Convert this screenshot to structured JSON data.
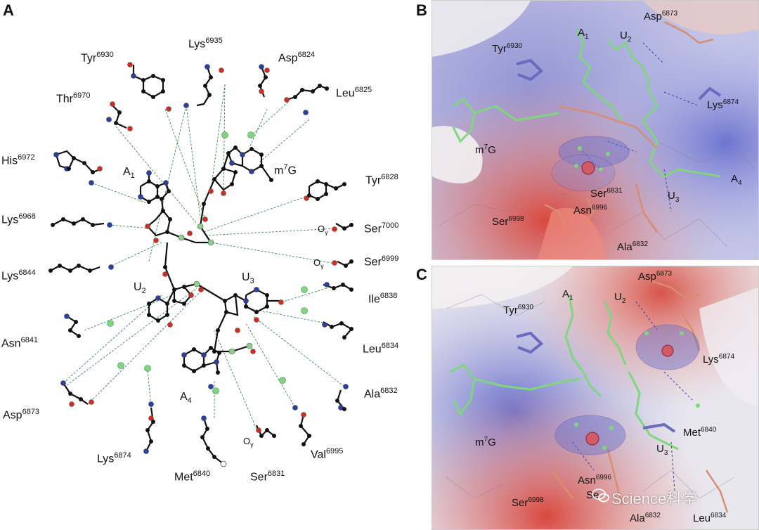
{
  "panels": {
    "a": "A",
    "b": "B",
    "c": "C"
  },
  "panel_a": {
    "residues": [
      {
        "key": "tyr6930",
        "name": "Tyr",
        "num": "6930"
      },
      {
        "key": "lys6935",
        "name": "Lys",
        "num": "6935"
      },
      {
        "key": "asp6824",
        "name": "Asp",
        "num": "6824"
      },
      {
        "key": "thr6970",
        "name": "Thr",
        "num": "6970"
      },
      {
        "key": "leu6825",
        "name": "Leu",
        "num": "6825"
      },
      {
        "key": "his6972",
        "name": "His",
        "num": "6972"
      },
      {
        "key": "tyr6828",
        "name": "Tyr",
        "num": "6828"
      },
      {
        "key": "lys6968",
        "name": "Lys",
        "num": "6968"
      },
      {
        "key": "ser7000",
        "name": "Ser",
        "num": "7000"
      },
      {
        "key": "ser6999",
        "name": "Ser",
        "num": "6999"
      },
      {
        "key": "lys6844",
        "name": "Lys",
        "num": "6844"
      },
      {
        "key": "ile6838",
        "name": "Ile",
        "num": "6838"
      },
      {
        "key": "asn6841",
        "name": "Asn",
        "num": "6841"
      },
      {
        "key": "leu6834",
        "name": "Leu",
        "num": "6834"
      },
      {
        "key": "asp6873",
        "name": "Asp",
        "num": "6873"
      },
      {
        "key": "ala6832",
        "name": "Ala",
        "num": "6832"
      },
      {
        "key": "lys6874",
        "name": "Lys",
        "num": "6874"
      },
      {
        "key": "val6995",
        "name": "Val",
        "num": "6995"
      },
      {
        "key": "met6840",
        "name": "Met",
        "num": "6840"
      },
      {
        "key": "ser6831",
        "name": "Ser",
        "num": "6831"
      }
    ],
    "nucleotides": {
      "a1": {
        "base": "A",
        "idx": "1"
      },
      "m7g": {
        "pre": "m",
        "sup": "7",
        "base": "G"
      },
      "u2": {
        "base": "U",
        "idx": "2"
      },
      "u3": {
        "base": "U",
        "idx": "3"
      },
      "a4": {
        "base": "A",
        "idx": "4"
      }
    },
    "ogamma": {
      "symbol": "O",
      "sub": "γ"
    }
  },
  "panel_b": {
    "labels": {
      "a1": "A",
      "a1_idx": "1",
      "u2": "U",
      "u2_idx": "2",
      "asp": "Asp",
      "asp_n": "6873",
      "tyr": "Tyr",
      "tyr_n": "6930",
      "lys": "Lys",
      "lys_n": "6874",
      "m7g_pre": "m",
      "m7g_sup": "7",
      "m7g": "G",
      "a4": "A",
      "a4_idx": "4",
      "ser6831": "Ser",
      "ser6831_n": "6831",
      "u3": "U",
      "u3_idx": "3",
      "asn": "Asn",
      "asn_n": "6996",
      "ser6998": "Ser",
      "ser6998_n": "6998",
      "ala": "Ala",
      "ala_n": "6832"
    }
  },
  "panel_c": {
    "labels": {
      "a1": "A",
      "a1_idx": "1",
      "u2": "U",
      "u2_idx": "2",
      "asp": "Asp",
      "asp_n": "6873",
      "tyr": "Tyr",
      "tyr_n": "6930",
      "lys": "Lys",
      "lys_n": "6874",
      "met": "Met",
      "met_n": "6840",
      "m7g_pre": "m",
      "m7g_sup": "7",
      "m7g": "G",
      "u3": "U",
      "u3_idx": "3",
      "asn": "Asn",
      "asn_n": "6996",
      "ser6998": "Ser",
      "ser6998_n": "6998",
      "se": "Se",
      "ala": "Ala",
      "ala_n": "6832",
      "leu": "Leu",
      "leu_n": "6834"
    }
  },
  "watermark": "Science科学",
  "colors": {
    "atom_c": "#111111",
    "atom_o": "#d62a1e",
    "atom_n": "#2b3fa8",
    "atom_p": "#8bd18b",
    "hbond": "#3c8a4f"
  }
}
